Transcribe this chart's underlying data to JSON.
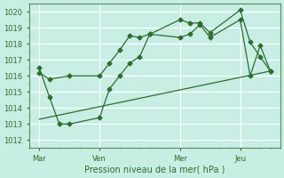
{
  "title": "",
  "xlabel": "Pression niveau de la mer( hPa )",
  "ylabel": "",
  "background_color": "#c8eee4",
  "grid_color": "#b0ddd0",
  "line_color": "#2d6e2d",
  "ylim": [
    1011.5,
    1020.5
  ],
  "yticks": [
    1012,
    1013,
    1014,
    1015,
    1016,
    1017,
    1018,
    1019,
    1020
  ],
  "xtick_labels": [
    "Mar",
    "Ven",
    "Mer",
    "Jeu"
  ],
  "xtick_positions": [
    0,
    6,
    14,
    20
  ],
  "xlim": [
    -1,
    24
  ],
  "line1_x": [
    0,
    1,
    3,
    6,
    7,
    8,
    9,
    10,
    11,
    14,
    15,
    16,
    17,
    20,
    21,
    22,
    23
  ],
  "line1_y": [
    1016.2,
    1015.8,
    1016.0,
    1016.0,
    1016.8,
    1017.6,
    1018.5,
    1018.4,
    1018.6,
    1019.5,
    1019.3,
    1019.3,
    1018.7,
    1020.1,
    1018.1,
    1017.2,
    1016.3
  ],
  "line2_x": [
    0,
    1,
    2,
    3,
    6,
    7,
    8,
    9,
    10,
    11,
    14,
    15,
    16,
    17,
    20,
    21,
    22,
    23
  ],
  "line2_y": [
    1016.5,
    1014.7,
    1013.0,
    1013.0,
    1013.4,
    1015.2,
    1016.0,
    1016.8,
    1017.2,
    1018.6,
    1018.4,
    1018.6,
    1019.2,
    1018.4,
    1019.5,
    1016.0,
    1017.9,
    1016.3
  ],
  "line3_x": [
    0,
    23
  ],
  "line3_y": [
    1013.3,
    1016.3
  ],
  "vline_positions": [
    0,
    6,
    14,
    20
  ]
}
